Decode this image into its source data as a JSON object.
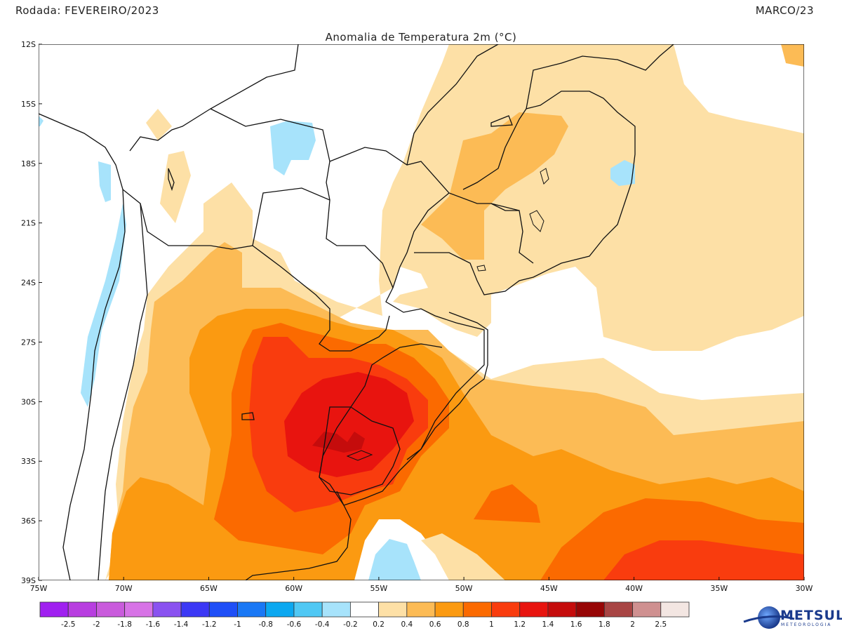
{
  "header": {
    "run_label": "Rodada: FEVEREIRO/2023",
    "target_month": "MARCO/23"
  },
  "map": {
    "title": "Anomalia de Temperatura 2m (°C)",
    "lat_labels": [
      "12S",
      "15S",
      "18S",
      "21S",
      "24S",
      "27S",
      "30S",
      "33S",
      "36S",
      "39S"
    ],
    "lon_labels": [
      "75W",
      "70W",
      "65W",
      "60W",
      "55W",
      "50W",
      "45W",
      "40W",
      "35W",
      "30W"
    ],
    "lat_range": [
      -39,
      -12
    ],
    "lon_range": [
      -75,
      -30
    ]
  },
  "colorbar": {
    "labels": [
      "-2.5",
      "-2",
      "-1.8",
      "-1.6",
      "-1.4",
      "-1.2",
      "-1",
      "-0.8",
      "-0.6",
      "-0.4",
      "-0.2",
      "0.2",
      "0.4",
      "0.6",
      "0.8",
      "1",
      "1.2",
      "1.4",
      "1.6",
      "1.8",
      "2",
      "2.5"
    ],
    "colors": [
      "#a020f0",
      "#b83ee0",
      "#c95bdc",
      "#d773e6",
      "#8a52f0",
      "#3c38f5",
      "#1f4ff7",
      "#1a78f5",
      "#0ca8f0",
      "#50c8f4",
      "#a7e3fb",
      "#ffffff",
      "#fde0a6",
      "#fcbb55",
      "#fb9a11",
      "#fb6a00",
      "#f93c0e",
      "#e8140f",
      "#c50c0c",
      "#970606",
      "#a84544",
      "#cf9090",
      "#f3e6e2"
    ]
  },
  "logo": {
    "name": "METSUL",
    "subtitle": "METEOROLOGIA",
    "accent_color": "#1a3a8c"
  }
}
